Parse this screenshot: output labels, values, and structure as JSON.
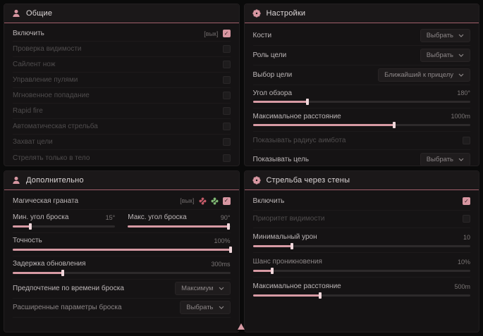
{
  "accent_color": "#d796a1",
  "header_line_color": "#a2606c",
  "panels": {
    "general": {
      "title": "Общие",
      "rows": [
        {
          "label": "Включить",
          "value": "[вык]",
          "checked": true
        },
        {
          "label": "Проверка видимости",
          "checked": false
        },
        {
          "label": "Сайлент нож",
          "checked": false
        },
        {
          "label": "Управление пулями",
          "checked": false
        },
        {
          "label": "Мгновенное попадание",
          "checked": false
        },
        {
          "label": "Rapid fire",
          "checked": false
        },
        {
          "label": "Автоматическая стрельба",
          "checked": false
        },
        {
          "label": "Захват цели",
          "checked": false
        },
        {
          "label": "Стрелять только в тело",
          "checked": false
        }
      ]
    },
    "settings": {
      "title": "Настройки",
      "bones_label": "Кости",
      "bones_value": "Выбрать",
      "role_label": "Роль цели",
      "role_value": "Выбрать",
      "target_label": "Выбор цели",
      "target_value": "Ближайший к прицелу",
      "fov_label": "Угол обзора",
      "fov_value": "180°",
      "fov_fill": "25%",
      "dist_label": "Максимальное расстояние",
      "dist_value": "1000m",
      "dist_fill": "65%",
      "radius_label": "Показывать радиус аимбота",
      "radius_checked": false,
      "show_target_label": "Показывать цель",
      "show_target_value": "Выбрать"
    },
    "additional": {
      "title": "Дополнительно",
      "grenade_label": "Магическая граната",
      "grenade_value": "[вык]",
      "grenade_checked": true,
      "min_angle_label": "Мин. угол броска",
      "min_angle_value": "15°",
      "min_angle_fill": "17%",
      "max_angle_label": "Макс. угол броска",
      "max_angle_value": "90°",
      "max_angle_fill": "98%",
      "accuracy_label": "Точность",
      "accuracy_value": "100%",
      "accuracy_fill": "100%",
      "delay_label": "Задержка обновления",
      "delay_value": "300ms",
      "delay_fill": "23%",
      "pref_label": "Предпочтение по времени броска",
      "pref_value": "Максимум",
      "adv_label": "Расширенные параметры броска",
      "adv_value": "Выбрать"
    },
    "wallbang": {
      "title": "Стрельба через стены",
      "enable_label": "Включить",
      "enable_checked": true,
      "priority_label": "Приоритет видимости",
      "priority_checked": false,
      "damage_label": "Минимальный урон",
      "damage_value": "10",
      "damage_fill": "18%",
      "chance_label": "Шанс проникновения",
      "chance_value": "10%",
      "chance_fill": "9%",
      "distance_label": "Максимальное расстояние",
      "distance_value": "500m",
      "distance_fill": "31%"
    }
  }
}
